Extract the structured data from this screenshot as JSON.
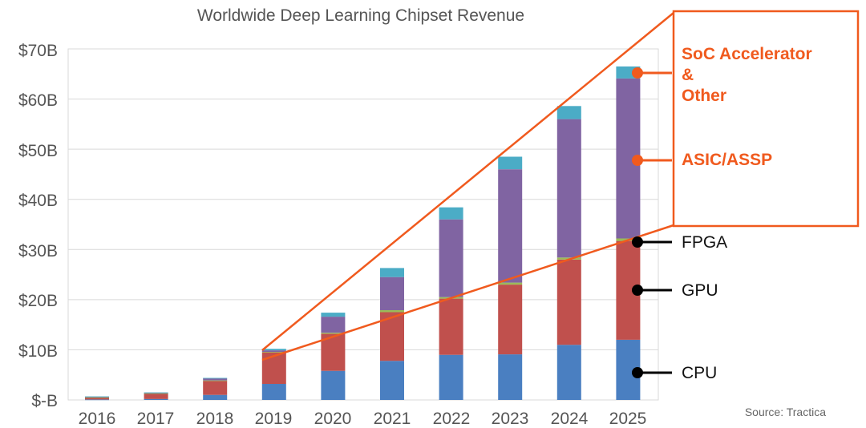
{
  "chart_data": {
    "type": "bar",
    "stacked": true,
    "title": "Worldwide Deep Learning Chipset Revenue",
    "categories": [
      "2016",
      "2017",
      "2018",
      "2019",
      "2020",
      "2021",
      "2022",
      "2023",
      "2024",
      "2025"
    ],
    "y_tick_labels": [
      "$-B",
      "$10B",
      "$20B",
      "$30B",
      "$40B",
      "$50B",
      "$60B",
      "$70B"
    ],
    "ylim": [
      0,
      70
    ],
    "unit": "$B",
    "grid": true,
    "series": [
      {
        "name": "CPU",
        "color": "#4A7FC1",
        "values": [
          0.1,
          0.2,
          1.0,
          3.2,
          5.8,
          7.8,
          9.0,
          9.1,
          11.0,
          12.0
        ]
      },
      {
        "name": "GPU",
        "color": "#C0504D",
        "values": [
          0.4,
          1.1,
          2.8,
          6.3,
          7.4,
          9.7,
          11.2,
          13.9,
          17.0,
          19.7
        ]
      },
      {
        "name": "FPGA",
        "color": "#9BBB59",
        "values": [
          0.05,
          0.05,
          0.1,
          0.1,
          0.2,
          0.4,
          0.3,
          0.4,
          0.4,
          0.5
        ]
      },
      {
        "name": "ASIC/ASSP",
        "color": "#8064A2",
        "values": [
          0.1,
          0.1,
          0.4,
          0.3,
          3.2,
          6.6,
          15.5,
          22.6,
          27.6,
          31.9
        ]
      },
      {
        "name": "SoC Accelerator & Other",
        "color": "#4BACC6",
        "values": [
          0.05,
          0.05,
          0.1,
          0.3,
          0.8,
          1.8,
          2.4,
          2.5,
          2.6,
          2.4
        ]
      }
    ],
    "legend": {
      "cpu": "CPU",
      "gpu": "GPU",
      "fpga": "FPGA",
      "asic": "ASIC/ASSP",
      "soc_line1": "SoC Accelerator",
      "soc_line2": "&",
      "soc_line3": "Other"
    },
    "source": "Source: Tractica",
    "callout_color": "#F05A1E"
  }
}
